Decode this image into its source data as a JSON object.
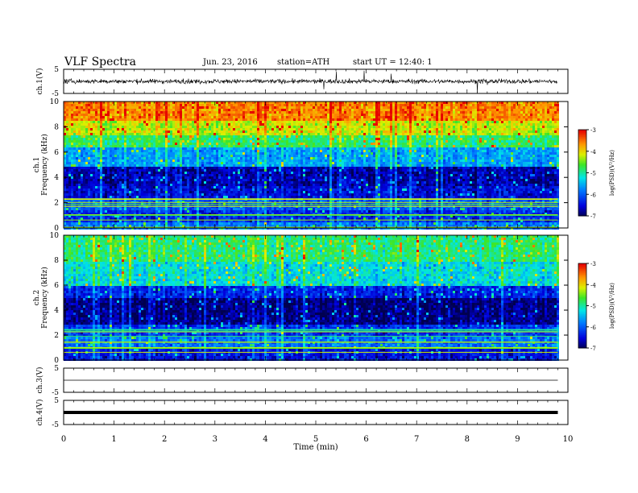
{
  "header": {
    "title": "VLF Spectra",
    "date": "Jun. 23, 2016",
    "station": "station=ATH",
    "start": "start  UT =   12:40: 1"
  },
  "chart_data": [
    {
      "type": "line",
      "panel": "ch1-waveform",
      "ylabel": "ch.1(V)",
      "ylim": [
        -5,
        5
      ],
      "yticks": [
        "5",
        "-5"
      ],
      "xlim": [
        0,
        10
      ],
      "signal_end_min": 9.8
    },
    {
      "type": "heatmap",
      "panel": "ch1-spectrogram",
      "ylabel": "ch.1\nFrequency  (kHz)",
      "ylabel_lines": [
        "ch.1",
        "Frequency  (kHz)"
      ],
      "ylim": [
        0,
        10
      ],
      "yticks": [
        "0",
        "2",
        "4",
        "6",
        "8",
        "10"
      ],
      "xlim": [
        0,
        10
      ],
      "data_end_min": 9.8,
      "colorbar": {
        "label": "log(PSD)(V²/Hz)",
        "range": [
          -7,
          -3
        ],
        "ticks": [
          "-3",
          "-4",
          "-5",
          "-6",
          "-7"
        ]
      },
      "level_bands_kHz": [
        {
          "from": 0,
          "to": 0.6,
          "level": -5.8
        },
        {
          "from": 0.6,
          "to": 1.5,
          "level": -6.3
        },
        {
          "from": 1.5,
          "to": 2.5,
          "level": -6.0
        },
        {
          "from": 2.5,
          "to": 3.5,
          "level": -6.5
        },
        {
          "from": 3.5,
          "to": 5.0,
          "level": -6.7
        },
        {
          "from": 5.0,
          "to": 6.5,
          "level": -5.6
        },
        {
          "from": 6.5,
          "to": 7.5,
          "level": -4.8
        },
        {
          "from": 7.5,
          "to": 8.5,
          "level": -4.2
        },
        {
          "from": 8.5,
          "to": 10.0,
          "level": -3.6
        }
      ]
    },
    {
      "type": "heatmap",
      "panel": "ch2-spectrogram",
      "ylabel": "ch.2\nFrequency  (kHz)",
      "ylabel_lines": [
        "ch.2",
        "Frequency  (kHz)"
      ],
      "ylim": [
        0,
        10
      ],
      "yticks": [
        "0",
        "2",
        "4",
        "6",
        "8",
        "10"
      ],
      "xlim": [
        0,
        10
      ],
      "data_end_min": 9.8,
      "colorbar": {
        "label": "log(PSD)(V²/Hz)",
        "range": [
          -7,
          -3
        ],
        "ticks": [
          "-3",
          "-4",
          "-5",
          "-6",
          "-7"
        ]
      },
      "level_bands_kHz": [
        {
          "from": 0,
          "to": 1.0,
          "level": -6.4
        },
        {
          "from": 1.0,
          "to": 2.0,
          "level": -5.8
        },
        {
          "from": 2.0,
          "to": 3.0,
          "level": -6.2
        },
        {
          "from": 3.0,
          "to": 5.0,
          "level": -6.8
        },
        {
          "from": 5.0,
          "to": 6.0,
          "level": -6.3
        },
        {
          "from": 6.0,
          "to": 8.0,
          "level": -5.2
        },
        {
          "from": 8.0,
          "to": 10.0,
          "level": -4.8
        }
      ]
    },
    {
      "type": "line",
      "panel": "ch3-waveform",
      "ylabel": "ch.3(V)",
      "ylim": [
        -5,
        5
      ],
      "yticks": [
        "5",
        "-5"
      ],
      "xlim": [
        0,
        10
      ],
      "signal_end_min": 9.8,
      "level_V": 0
    },
    {
      "type": "line",
      "panel": "ch4-waveform",
      "ylabel": "ch.4(V)",
      "ylim": [
        -5,
        5
      ],
      "yticks": [
        "5",
        "-5"
      ],
      "xlim": [
        0,
        10
      ],
      "signal_end_min": 9.8,
      "level_V": 0
    }
  ],
  "xaxis": {
    "label": "Time  (min)",
    "ticks": [
      "0",
      "1",
      "2",
      "3",
      "4",
      "5",
      "6",
      "7",
      "8",
      "9",
      "10"
    ],
    "range": [
      0,
      10
    ]
  }
}
